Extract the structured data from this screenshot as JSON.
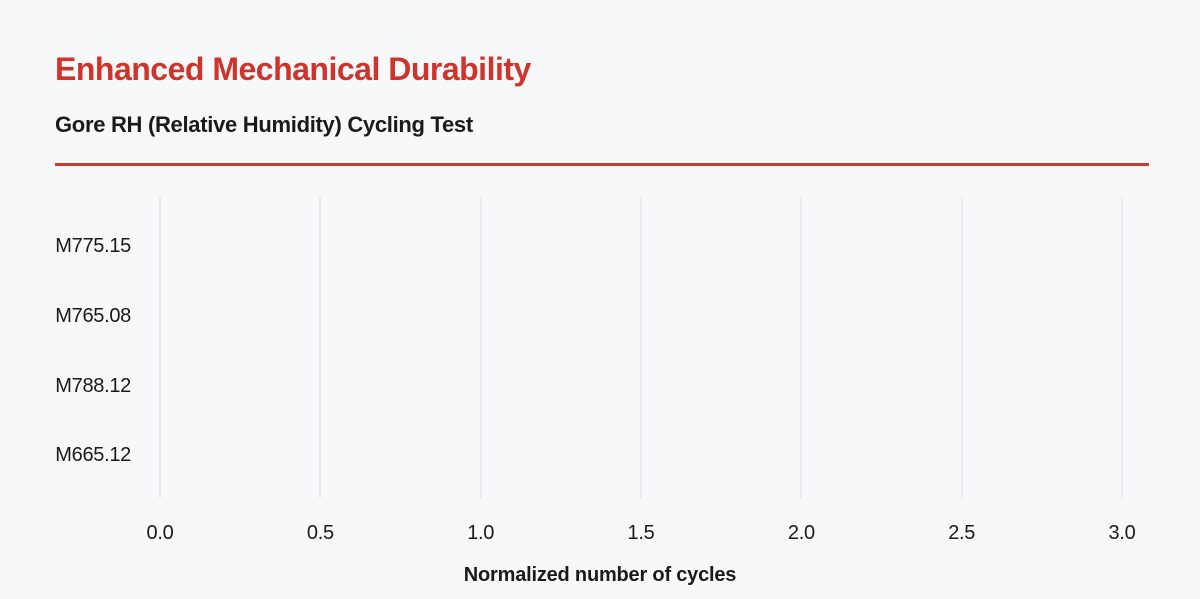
{
  "theme": {
    "background": "#F7F8FA",
    "accent_red": "#CE342B",
    "divider_red": "#C43C32",
    "text_dark": "#1A1A1A",
    "gridline_gray": "#E8EAED"
  },
  "header": {
    "title": "Enhanced Mechanical Durability",
    "subtitle": "Gore RH (Relative Humidity) Cycling Test"
  },
  "chart_data": {
    "type": "bar",
    "orientation": "horizontal",
    "title": "Gore RH (Relative Humidity) Cycling Test",
    "categories": [
      "M775.15",
      "M765.08",
      "M788.12",
      "M665.12"
    ],
    "series": [
      {
        "name": "Normalized number of cycles",
        "values": [
          null,
          null,
          null,
          null
        ]
      }
    ],
    "bars_rendered": false,
    "xlabel": "Normalized number of cycles",
    "ylabel": "",
    "xlim": [
      0.0,
      3.0
    ],
    "x_ticks": [
      0.0,
      0.5,
      1.0,
      1.5,
      2.0,
      2.5,
      3.0
    ],
    "x_tick_labels": [
      "0.0",
      "0.5",
      "1.0",
      "1.5",
      "2.0",
      "2.5",
      "3.0"
    ],
    "grid": "vertical-only",
    "legend": "none"
  }
}
